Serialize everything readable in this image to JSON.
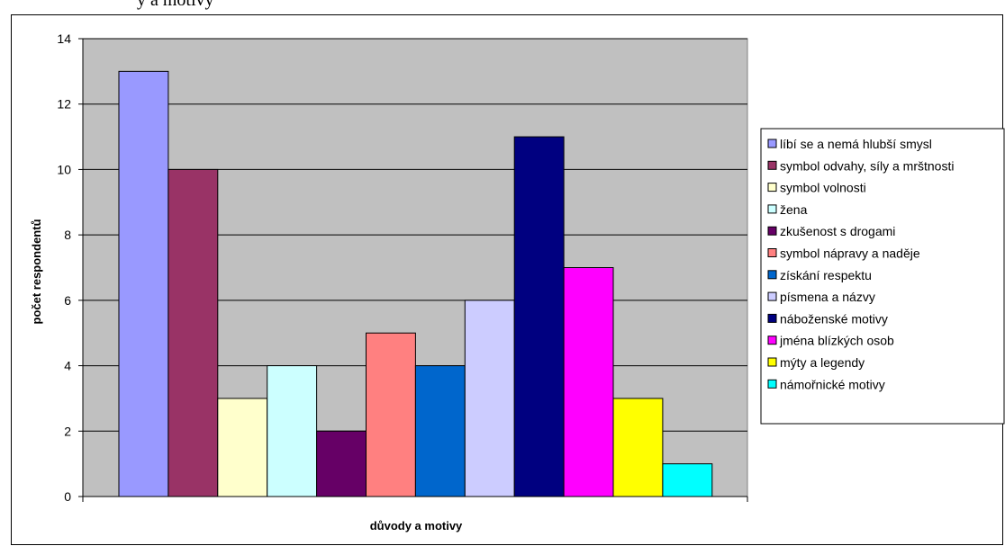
{
  "caption_fragment": "y a motivy",
  "chart_data": {
    "type": "bar",
    "categories": [
      "líbí se a nemá hlubší smysl",
      "symbol odvahy, síly a mrštnosti",
      "symbol volnosti",
      "žena",
      "zkušenost s drogami",
      "symbol nápravy a naděje",
      "získání respektu",
      "písmena a názvy",
      "náboženské motivy",
      "jména blízkých osob",
      "mýty a legendy",
      "námořnické motivy"
    ],
    "values": [
      13,
      10,
      3,
      4,
      2,
      5,
      4,
      6,
      11,
      7,
      3,
      1
    ],
    "colors": [
      "#9999ff",
      "#993366",
      "#ffffcc",
      "#ccffff",
      "#660066",
      "#ff8080",
      "#0066cc",
      "#ccccff",
      "#000080",
      "#ff00ff",
      "#ffff00",
      "#00ffff"
    ],
    "xlabel": "důvody a motivy",
    "ylabel": "počet respondentů",
    "ylim": [
      0,
      14
    ],
    "yticks": [
      "0",
      "2",
      "4",
      "6",
      "8",
      "10",
      "12",
      "14"
    ],
    "grid": true,
    "plot_background": "#c0c0c0",
    "legend_position": "right"
  }
}
